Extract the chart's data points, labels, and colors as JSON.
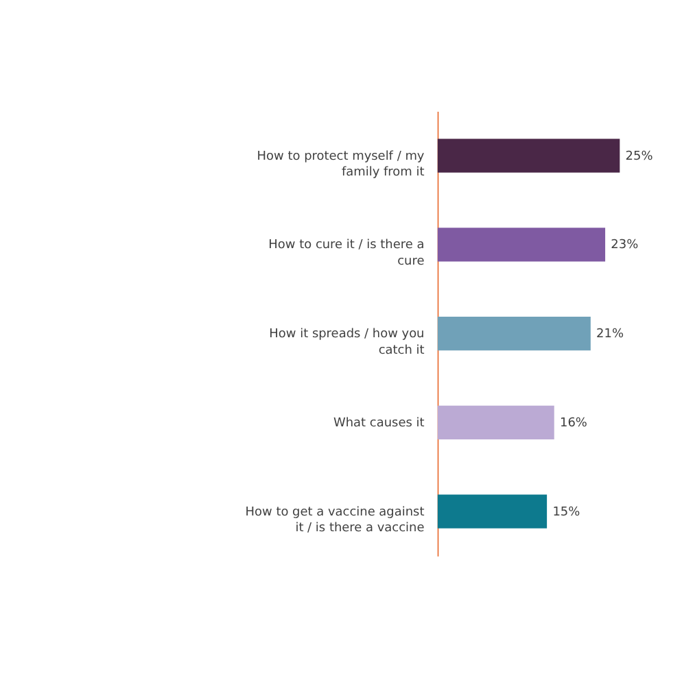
{
  "chart_data": {
    "type": "bar",
    "orientation": "horizontal",
    "categories": [
      "How to protect myself / my family from it",
      "How to cure it / is there a cure",
      "How it spreads / how you catch it",
      "What causes it",
      "How to get a vaccine against it / is there a vaccine"
    ],
    "values": [
      25,
      23,
      21,
      16,
      15
    ],
    "colors": [
      "#4a2747",
      "#7f5aa2",
      "#70a1b8",
      "#bbaad4",
      "#0d7a8e"
    ],
    "value_labels": [
      "25%",
      "23%",
      "21%",
      "16%",
      "15%"
    ]
  }
}
